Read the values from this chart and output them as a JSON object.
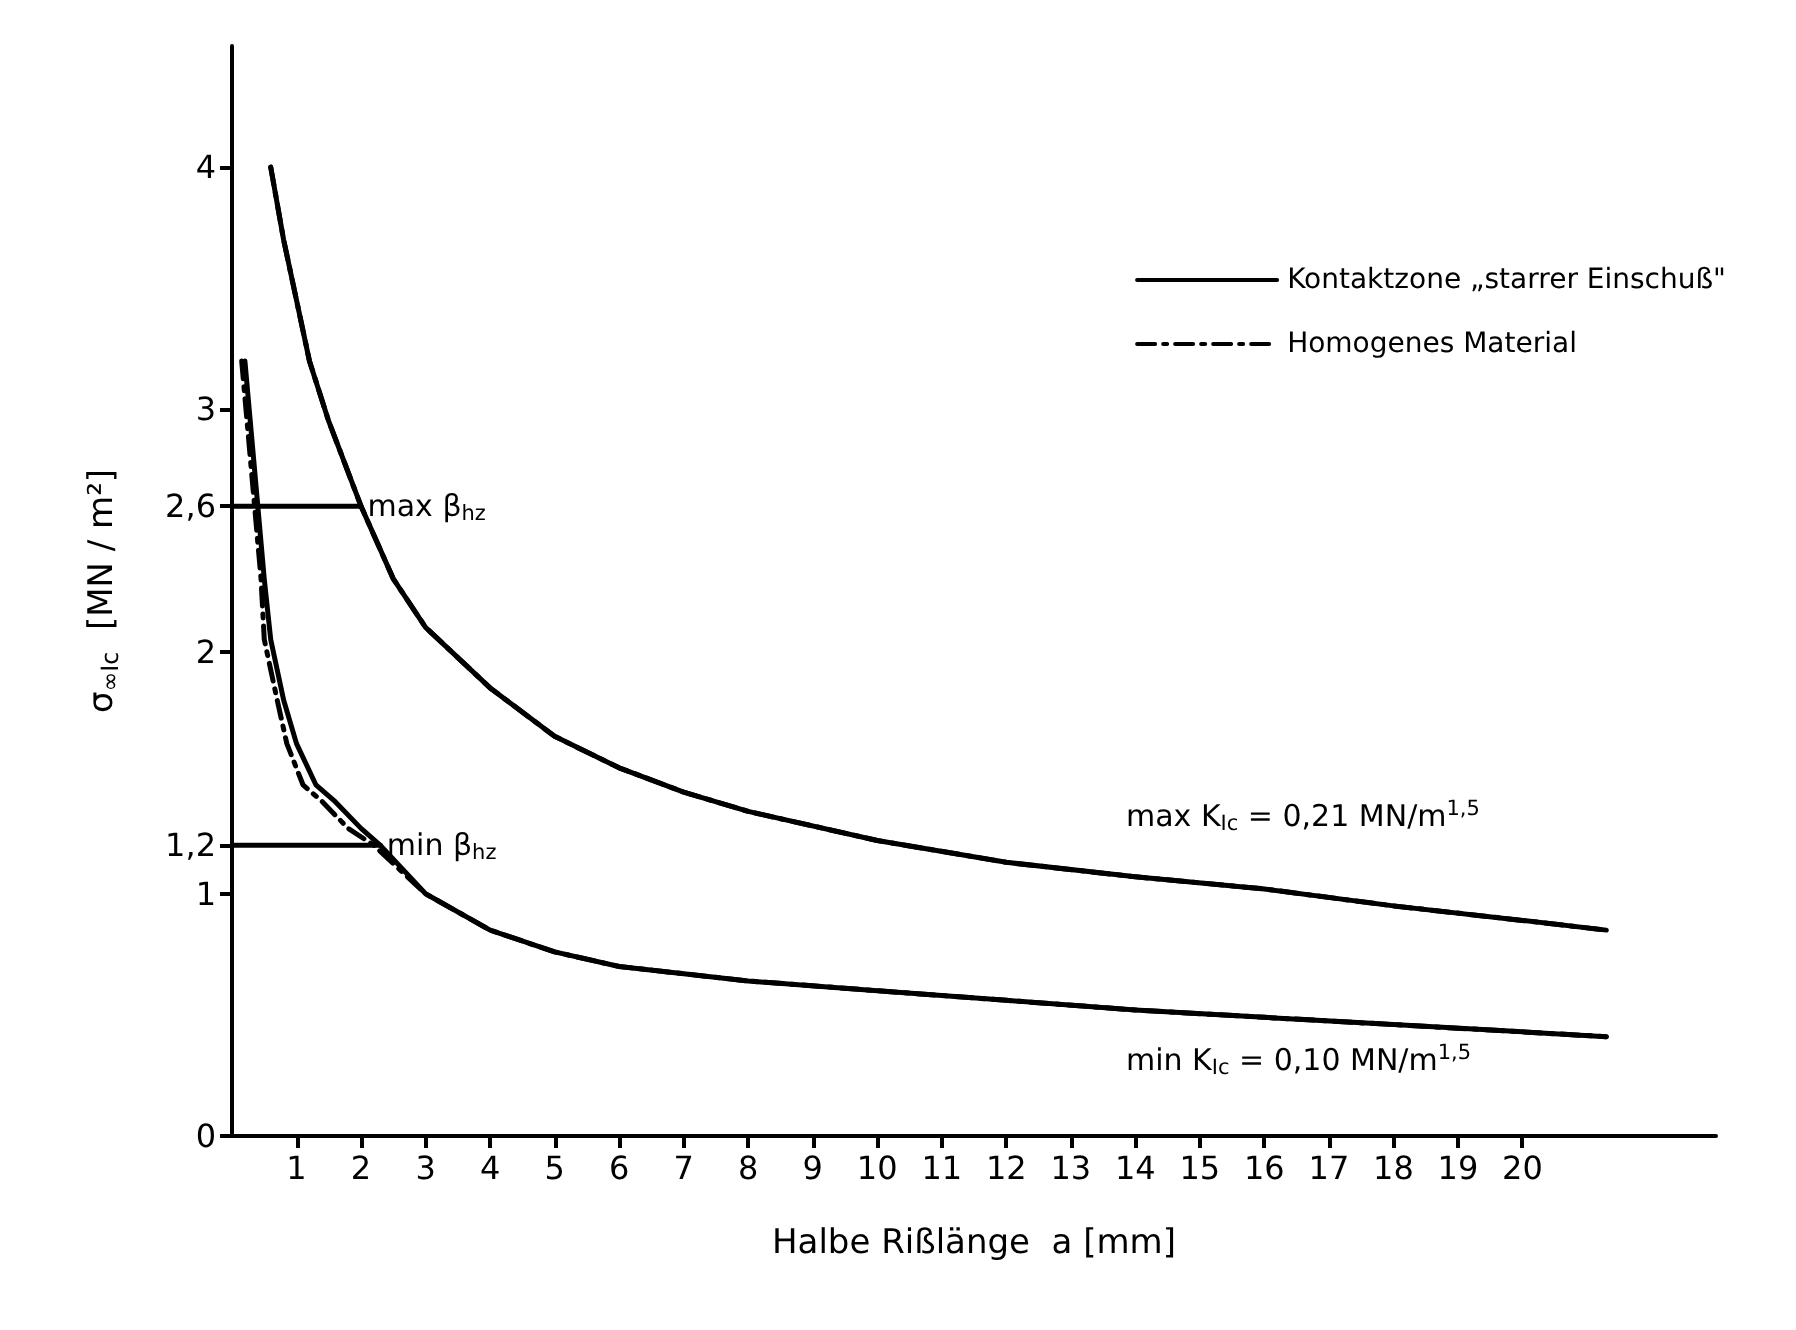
{
  "chart_data": {
    "type": "line",
    "xlabel": "Halbe Rißlänge  a [mm]",
    "ylabel": "σ$_{∞Ic}$  [MN / m²]",
    "xlim": [
      0,
      23
    ],
    "xticks": [
      1,
      2,
      3,
      4,
      5,
      6,
      7,
      8,
      9,
      10,
      11,
      12,
      13,
      14,
      15,
      16,
      17,
      18,
      19,
      20
    ],
    "ylim": [
      0,
      4.5
    ],
    "yticks": [
      0,
      1,
      {
        "value": 1.2,
        "label": "1,2"
      },
      2,
      {
        "value": 2.6,
        "label": "2,6"
      },
      3,
      4
    ],
    "grid": false,
    "legend": "top right",
    "marker": "none",
    "series": [
      {
        "name": "Kontaktzone „starrer Einschuß\"",
        "color": "#000000",
        "line_style": "solid",
        "x": [
          0.6,
          0.8,
          1.0,
          1.2,
          1.5,
          2,
          2.5,
          3,
          4,
          5,
          6,
          7,
          8,
          10,
          12,
          14,
          16,
          18,
          20,
          21.3
        ],
        "values": [
          4.0,
          3.7,
          3.45,
          3.2,
          2.95,
          2.6,
          2.3,
          2.1,
          1.85,
          1.65,
          1.52,
          1.42,
          1.34,
          1.22,
          1.13,
          1.07,
          1.02,
          0.95,
          0.89,
          0.85
        ]
      },
      {
        "name": "Homogenes Material",
        "color": "#000000",
        "line_style": "dashed",
        "x": [
          0.6,
          0.8,
          1.0,
          1.2,
          1.5,
          2,
          2.5,
          3,
          4,
          5,
          6,
          7,
          8,
          10,
          12,
          14,
          16,
          18,
          20,
          21.3
        ],
        "values": [
          4.0,
          3.7,
          3.45,
          3.2,
          2.95,
          2.6,
          2.3,
          2.1,
          1.85,
          1.65,
          1.52,
          1.42,
          1.34,
          1.22,
          1.13,
          1.07,
          1.02,
          0.95,
          0.89,
          0.85
        ]
      },
      {
        "color": "#000000",
        "line_style": "solid",
        "x": [
          0.2,
          0.3,
          0.4,
          0.5,
          0.6,
          0.8,
          1.0,
          1.3,
          1.6,
          2.0,
          2.3,
          3,
          4,
          5,
          6,
          8,
          10,
          12,
          14,
          16,
          18,
          20,
          21.3
        ],
        "values": [
          3.2,
          2.9,
          2.6,
          2.3,
          2.05,
          1.8,
          1.62,
          1.45,
          1.38,
          1.27,
          1.2,
          1.0,
          0.85,
          0.76,
          0.7,
          0.64,
          0.6,
          0.56,
          0.52,
          0.49,
          0.46,
          0.43,
          0.41
        ]
      },
      {
        "color": "#000000",
        "line_style": "dashed",
        "x": [
          0.15,
          0.25,
          0.35,
          0.45,
          0.5,
          0.7,
          0.85,
          1.1,
          1.4,
          1.8,
          2.2,
          3,
          4,
          5,
          6,
          8,
          10,
          12,
          14,
          16,
          18,
          20,
          21.3
        ],
        "values": [
          3.2,
          2.9,
          2.6,
          2.3,
          2.05,
          1.8,
          1.62,
          1.45,
          1.38,
          1.27,
          1.2,
          1.0,
          0.85,
          0.76,
          0.7,
          0.64,
          0.6,
          0.56,
          0.52,
          0.49,
          0.46,
          0.43,
          0.41
        ]
      },
      {
        "color": "#000000",
        "line_style": "solid",
        "x": [
          0,
          2
        ],
        "values": [
          2.6,
          2.6
        ]
      },
      {
        "color": "#000000",
        "line_style": "solid",
        "x": [
          0,
          2.3
        ],
        "values": [
          1.2,
          1.2
        ]
      }
    ],
    "annotations": [
      {
        "text": "max β$_{hz}$",
        "x": 2.1,
        "y": 2.6
      },
      {
        "text": "min β$_{hz}$",
        "x": 2.4,
        "y": 1.2
      },
      "max K$_{Ic}$ = 0,21 MN/m$^{1,5}$",
      "min K$_{Ic}$ = 0,10 MN/m$^{1,5}$"
    ]
  }
}
